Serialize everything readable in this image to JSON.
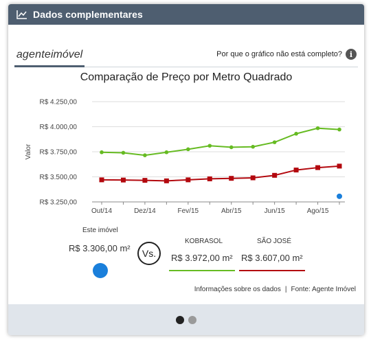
{
  "header": {
    "title": "Dados complementares",
    "icon": "line-chart-icon"
  },
  "brand": {
    "name_part1": "agente",
    "name_part2": "imóvel"
  },
  "help": {
    "text": "Por que o gráfico não está completo?",
    "icon": "info-icon",
    "icon_glyph": "i"
  },
  "chart_data": {
    "type": "line",
    "title": "Comparação de Preço por Metro Quadrado",
    "ylabel": "Valor",
    "xlabel": "",
    "ylim": [
      3250,
      4250
    ],
    "yticks": [
      3250,
      3500,
      3750,
      4000,
      4250
    ],
    "ytick_labels": [
      "R$ 3.250,00",
      "R$ 3.500,00",
      "R$ 3.750,00",
      "R$ 4.000,00",
      "R$ 4.250,00"
    ],
    "x": [
      "Out/14",
      "Nov/14",
      "Dez/14",
      "Jan/15",
      "Fev/15",
      "Mar/15",
      "Abr/15",
      "Mai/15",
      "Jun/15",
      "Jul/15",
      "Ago/15",
      "Set/15"
    ],
    "xtick_labels": [
      "Out/14",
      "Dez/14",
      "Fev/15",
      "Abr/15",
      "Jun/15",
      "Ago/15"
    ],
    "grid": true,
    "series": [
      {
        "name": "KOBRASOL",
        "color": "#66bb22",
        "values": [
          3745,
          3740,
          3715,
          3745,
          3775,
          3810,
          3795,
          3800,
          3845,
          3930,
          3985,
          3972
        ]
      },
      {
        "name": "SÃO JOSÉ",
        "color": "#b3080e",
        "values": [
          3470,
          3468,
          3465,
          3460,
          3470,
          3480,
          3485,
          3490,
          3515,
          3568,
          3592,
          3607
        ]
      }
    ],
    "own_point": {
      "name": "Este imóvel",
      "x": "Set/15",
      "value": 3306,
      "color": "#1a7fdb"
    }
  },
  "comparison": {
    "own_label": "Este imóvel",
    "own_value": "R$ 3.306,00 m²",
    "vs_label": "Vs.",
    "kobrasol_label": "KOBRASOL",
    "kobrasol_value": "R$ 3.972,00 m²",
    "kobrasol_color": "#66bb22",
    "saojose_label": "SÃO JOSÉ",
    "saojose_value": "R$ 3.607,00 m²",
    "saojose_color": "#b3080e",
    "own_color": "#1a7fdb"
  },
  "footer": {
    "info_link": "Informações sobre os dados",
    "separator": "|",
    "source": "Fonte: Agente Imóvel",
    "pagination": {
      "count": 2,
      "active": 1
    }
  }
}
